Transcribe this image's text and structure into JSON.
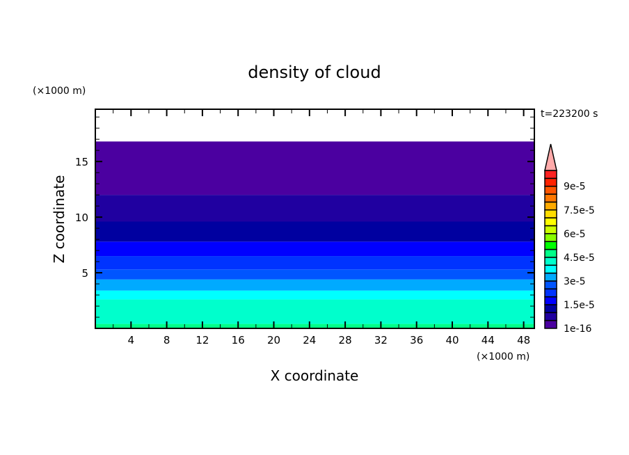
{
  "chart_data": {
    "type": "heatmap",
    "title": "density of cloud",
    "xlabel": "X coordinate",
    "ylabel": "Z coordinate",
    "x_unit": "(×1000 m)",
    "y_unit": "(×1000 m)",
    "time_label": "t=223200 s",
    "xlim": [
      0,
      49.2
    ],
    "ylim": [
      0,
      19.7
    ],
    "x_ticks": [
      4,
      8,
      12,
      16,
      20,
      24,
      28,
      32,
      36,
      40,
      44,
      48
    ],
    "y_ticks": [
      5,
      10,
      15
    ],
    "bands": [
      {
        "z_from": 0.0,
        "z_to": 0.4,
        "level": 9
      },
      {
        "z_from": 0.4,
        "z_to": 2.6,
        "level": 8
      },
      {
        "z_from": 2.6,
        "z_to": 3.4,
        "level": 7
      },
      {
        "z_from": 3.4,
        "z_to": 4.4,
        "level": 6
      },
      {
        "z_from": 4.4,
        "z_to": 5.3,
        "level": 5
      },
      {
        "z_from": 5.3,
        "z_to": 6.5,
        "level": 4
      },
      {
        "z_from": 6.5,
        "z_to": 7.8,
        "level": 3
      },
      {
        "z_from": 7.8,
        "z_to": 9.6,
        "level": 2
      },
      {
        "z_from": 9.6,
        "z_to": 12.0,
        "level": 1
      },
      {
        "z_from": 12.0,
        "z_to": 16.8,
        "level": 0
      }
    ],
    "colorbar": {
      "levels": [
        1e-16,
        5e-06,
        1e-05,
        1.5e-05,
        2e-05,
        2.5e-05,
        3e-05,
        3.5e-05,
        4e-05,
        4.5e-05,
        5e-05,
        5.5e-05,
        6e-05,
        6.5e-05,
        7e-05,
        7.5e-05,
        8e-05,
        8.5e-05,
        9e-05,
        9.5e-05
      ],
      "colors": [
        "#4b00a0",
        "#2000a0",
        "#0000a0",
        "#0000ff",
        "#0033ff",
        "#0055ff",
        "#00aaff",
        "#00ffff",
        "#00ffcc",
        "#00ff88",
        "#00ff00",
        "#88ff00",
        "#ccff00",
        "#ffff00",
        "#ffdd00",
        "#ffaa00",
        "#ff7700",
        "#ff5500",
        "#ff2200",
        "#ff2222"
      ],
      "extend_color": "#ffaaaa",
      "tick_labels": [
        {
          "level": 0,
          "label": "1e-16"
        },
        {
          "level": 3,
          "label": "1.5e-5"
        },
        {
          "level": 6,
          "label": "3e-5"
        },
        {
          "level": 9,
          "label": "4.5e-5"
        },
        {
          "level": 12,
          "label": "6e-5"
        },
        {
          "level": 15,
          "label": "7.5e-5"
        },
        {
          "level": 18,
          "label": "9e-5"
        }
      ]
    }
  }
}
